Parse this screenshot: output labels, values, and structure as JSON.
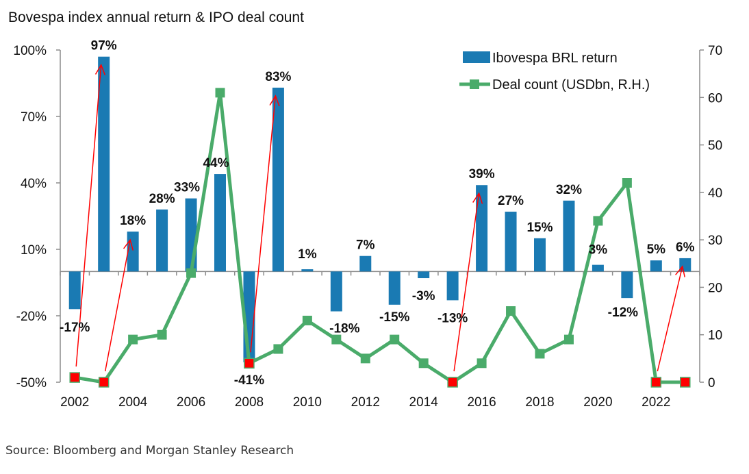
{
  "chart_data": {
    "type": "bar+line",
    "title": "Bovespa index annual return & IPO deal count",
    "source": "Source: Bloomberg and Morgan Stanley Research",
    "categories": [
      "2002",
      "2003",
      "2004",
      "2005",
      "2006",
      "2007",
      "2008",
      "2009",
      "2010",
      "2011",
      "2012",
      "2013",
      "2014",
      "2015",
      "2016",
      "2017",
      "2018",
      "2019",
      "2020",
      "2021",
      "2022",
      "2023"
    ],
    "x_tick_labels": [
      "2002",
      "2004",
      "2006",
      "2008",
      "2010",
      "2012",
      "2014",
      "2016",
      "2018",
      "2020",
      "2022"
    ],
    "series": [
      {
        "name": "Ibovespa BRL return",
        "type": "bar",
        "axis": "left",
        "color": "#1a7ab3",
        "values": [
          -17,
          97,
          18,
          28,
          33,
          44,
          -41,
          83,
          1,
          -18,
          7,
          -15,
          -3,
          -13,
          39,
          27,
          15,
          32,
          3,
          -12,
          5,
          6
        ],
        "labels": [
          "-17%",
          "97%",
          "18%",
          "28%",
          "33%",
          "44%",
          "-41%",
          "83%",
          "1%",
          "-18%",
          "7%",
          "-15%",
          "-3%",
          "-13%",
          "39%",
          "27%",
          "15%",
          "32%",
          "3%",
          "-12%",
          "5%",
          "6%"
        ]
      },
      {
        "name": "Deal count (USDbn, R.H.)",
        "type": "line",
        "axis": "right",
        "color": "#4aab6a",
        "values": [
          1,
          0,
          9,
          10,
          23,
          61,
          4,
          7,
          13,
          9,
          5,
          9,
          4,
          0,
          4,
          15,
          6,
          9,
          34,
          42,
          0,
          0
        ],
        "highlight_color": "#ff0000",
        "highlighted_years": [
          "2002",
          "2003",
          "2008",
          "2015",
          "2022",
          "2023"
        ]
      }
    ],
    "annotations": {
      "type": "red arrows from low deal-count years to next-year return bar",
      "color": "#ff0000",
      "arrows": [
        {
          "from_year": "2002",
          "to_year": "2003"
        },
        {
          "from_year": "2003",
          "to_year": "2004"
        },
        {
          "from_year": "2008",
          "to_year": "2009"
        },
        {
          "from_year": "2015",
          "to_year": "2016"
        },
        {
          "from_year": "2022",
          "to_year": "2023"
        }
      ]
    },
    "left_axis": {
      "min": -50,
      "max": 100,
      "ticks": [
        100,
        70,
        40,
        10,
        -20,
        -50
      ],
      "tick_labels": [
        "100%",
        "70%",
        "40%",
        "10%",
        "-20%",
        "-50%"
      ]
    },
    "right_axis": {
      "min": 0,
      "max": 70,
      "ticks": [
        70,
        60,
        50,
        40,
        30,
        20,
        10,
        0
      ],
      "tick_labels": [
        "70",
        "60",
        "50",
        "40",
        "30",
        "20",
        "10",
        "0"
      ]
    },
    "legend": {
      "placement": "top-right",
      "entries": [
        "Ibovespa BRL return",
        "Deal count (USDbn, R.H.)"
      ]
    },
    "grid": false
  }
}
